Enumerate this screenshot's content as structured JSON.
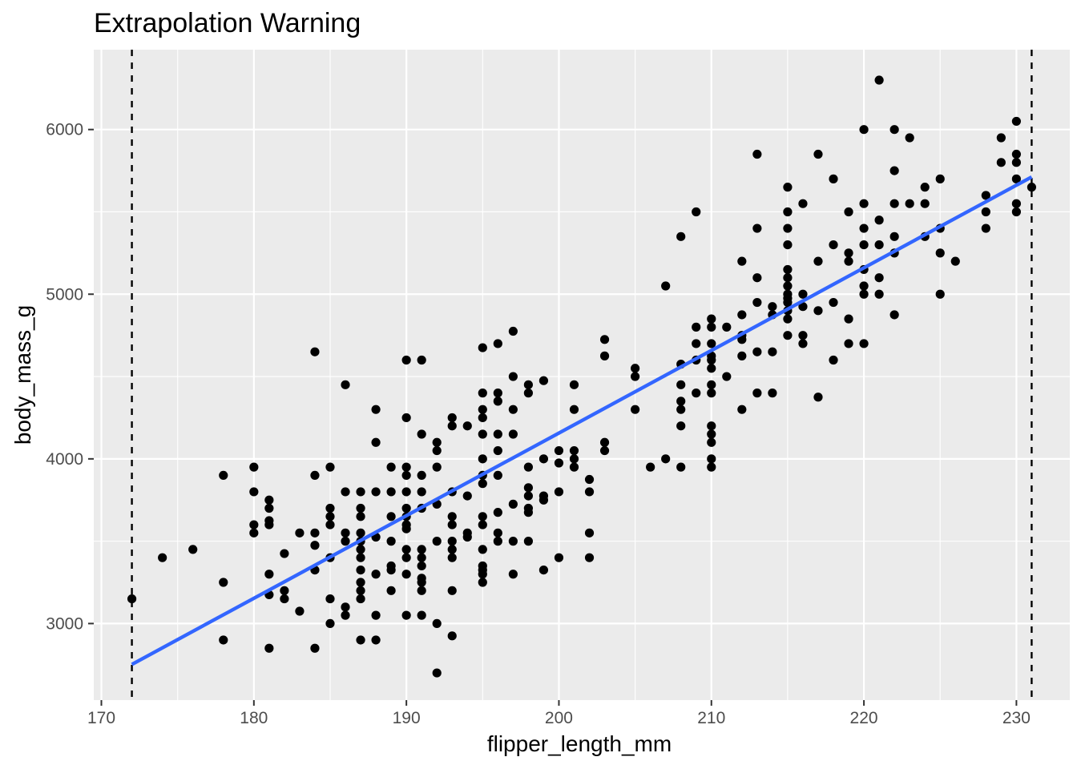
{
  "chart_data": {
    "type": "scatter",
    "title": "Extrapolation Warning",
    "xlabel": "flipper_length_mm",
    "ylabel": "body_mass_g",
    "xlim": [
      169.5,
      233.5
    ],
    "ylim": [
      2535,
      6485
    ],
    "x_ticks": [
      170,
      180,
      190,
      200,
      210,
      220,
      230
    ],
    "y_ticks": [
      3000,
      4000,
      5000,
      6000
    ],
    "grid": true,
    "panel_background": "#ebebeb",
    "point_color": "#000000",
    "fit_line": {
      "x": [
        172,
        231
      ],
      "y": [
        2752,
        5712
      ],
      "color": "#3366ff"
    },
    "reference_lines": [
      {
        "x": 172,
        "style": "dashed",
        "color": "#000000"
      },
      {
        "x": 231,
        "style": "dashed",
        "color": "#000000"
      }
    ],
    "points": [
      [
        172,
        3150
      ],
      [
        174,
        3400
      ],
      [
        176,
        3450
      ],
      [
        178,
        3900
      ],
      [
        178,
        3250
      ],
      [
        178,
        2900
      ],
      [
        180,
        3950
      ],
      [
        180,
        3800
      ],
      [
        180,
        3600
      ],
      [
        180,
        3550
      ],
      [
        181,
        3750
      ],
      [
        181,
        3700
      ],
      [
        181,
        3625
      ],
      [
        181,
        3600
      ],
      [
        181,
        3300
      ],
      [
        181,
        3175
      ],
      [
        181,
        2850
      ],
      [
        182,
        3425
      ],
      [
        182,
        3200
      ],
      [
        182,
        3150
      ],
      [
        183,
        3550
      ],
      [
        183,
        3075
      ],
      [
        184,
        4650
      ],
      [
        184,
        3900
      ],
      [
        184,
        3550
      ],
      [
        184,
        3475
      ],
      [
        184,
        3325
      ],
      [
        184,
        2850
      ],
      [
        185,
        3950
      ],
      [
        185,
        3700
      ],
      [
        185,
        3650
      ],
      [
        185,
        3600
      ],
      [
        185,
        3400
      ],
      [
        185,
        3150
      ],
      [
        185,
        3000
      ],
      [
        186,
        4450
      ],
      [
        186,
        3800
      ],
      [
        186,
        3550
      ],
      [
        186,
        3500
      ],
      [
        186,
        3100
      ],
      [
        186,
        3050
      ],
      [
        187,
        3800
      ],
      [
        187,
        3700
      ],
      [
        187,
        3650
      ],
      [
        187,
        3550
      ],
      [
        187,
        3500
      ],
      [
        187,
        3450
      ],
      [
        187,
        3400
      ],
      [
        187,
        3325
      ],
      [
        187,
        3250
      ],
      [
        187,
        3200
      ],
      [
        187,
        3150
      ],
      [
        187,
        2900
      ],
      [
        188,
        4300
      ],
      [
        188,
        4100
      ],
      [
        188,
        3800
      ],
      [
        188,
        3525
      ],
      [
        188,
        3300
      ],
      [
        188,
        3050
      ],
      [
        188,
        2900
      ],
      [
        189,
        3950
      ],
      [
        189,
        3800
      ],
      [
        189,
        3650
      ],
      [
        189,
        3500
      ],
      [
        189,
        3350
      ],
      [
        189,
        3325
      ],
      [
        189,
        3200
      ],
      [
        190,
        4600
      ],
      [
        190,
        4250
      ],
      [
        190,
        3950
      ],
      [
        190,
        3900
      ],
      [
        190,
        3800
      ],
      [
        190,
        3700
      ],
      [
        190,
        3650
      ],
      [
        190,
        3600
      ],
      [
        190,
        3575
      ],
      [
        190,
        3450
      ],
      [
        190,
        3400
      ],
      [
        190,
        3300
      ],
      [
        190,
        3050
      ],
      [
        191,
        4600
      ],
      [
        191,
        4150
      ],
      [
        191,
        3900
      ],
      [
        191,
        3800
      ],
      [
        191,
        3700
      ],
      [
        191,
        3450
      ],
      [
        191,
        3400
      ],
      [
        191,
        3350
      ],
      [
        191,
        3275
      ],
      [
        191,
        3250
      ],
      [
        191,
        3200
      ],
      [
        191,
        3050
      ],
      [
        192,
        4100
      ],
      [
        192,
        4050
      ],
      [
        192,
        3950
      ],
      [
        192,
        3725
      ],
      [
        192,
        3500
      ],
      [
        192,
        3000
      ],
      [
        192,
        2700
      ],
      [
        193,
        4250
      ],
      [
        193,
        4200
      ],
      [
        193,
        3800
      ],
      [
        193,
        3650
      ],
      [
        193,
        3600
      ],
      [
        193,
        3500
      ],
      [
        193,
        3450
      ],
      [
        193,
        3400
      ],
      [
        193,
        3200
      ],
      [
        193,
        2925
      ],
      [
        194,
        4200
      ],
      [
        194,
        3775
      ],
      [
        194,
        3550
      ],
      [
        194,
        3525
      ],
      [
        195,
        4675
      ],
      [
        195,
        4400
      ],
      [
        195,
        4300
      ],
      [
        195,
        4250
      ],
      [
        195,
        4150
      ],
      [
        195,
        4000
      ],
      [
        195,
        3900
      ],
      [
        195,
        3850
      ],
      [
        195,
        3650
      ],
      [
        195,
        3600
      ],
      [
        195,
        3450
      ],
      [
        195,
        3350
      ],
      [
        195,
        3325
      ],
      [
        195,
        3300
      ],
      [
        195,
        3250
      ],
      [
        196,
        4700
      ],
      [
        196,
        4400
      ],
      [
        196,
        4350
      ],
      [
        196,
        4150
      ],
      [
        196,
        4050
      ],
      [
        196,
        3900
      ],
      [
        196,
        3675
      ],
      [
        196,
        3550
      ],
      [
        196,
        3500
      ],
      [
        197,
        4775
      ],
      [
        197,
        4500
      ],
      [
        197,
        4300
      ],
      [
        197,
        4150
      ],
      [
        197,
        3725
      ],
      [
        197,
        3500
      ],
      [
        197,
        3300
      ],
      [
        198,
        4450
      ],
      [
        198,
        4400
      ],
      [
        198,
        3950
      ],
      [
        198,
        3825
      ],
      [
        198,
        3775
      ],
      [
        198,
        3700
      ],
      [
        198,
        3675
      ],
      [
        198,
        3500
      ],
      [
        199,
        4475
      ],
      [
        199,
        4000
      ],
      [
        199,
        3775
      ],
      [
        199,
        3750
      ],
      [
        199,
        3325
      ],
      [
        200,
        4050
      ],
      [
        200,
        3975
      ],
      [
        200,
        3800
      ],
      [
        200,
        3400
      ],
      [
        201,
        4450
      ],
      [
        201,
        4300
      ],
      [
        201,
        4050
      ],
      [
        201,
        4000
      ],
      [
        201,
        3950
      ],
      [
        202,
        3875
      ],
      [
        202,
        3800
      ],
      [
        202,
        3550
      ],
      [
        202,
        3400
      ],
      [
        203,
        4725
      ],
      [
        203,
        4625
      ],
      [
        203,
        4100
      ],
      [
        203,
        4050
      ],
      [
        205,
        4550
      ],
      [
        205,
        4500
      ],
      [
        205,
        4300
      ],
      [
        206,
        3950
      ],
      [
        207,
        5050
      ],
      [
        207,
        4000
      ],
      [
        208,
        5350
      ],
      [
        208,
        4575
      ],
      [
        208,
        4450
      ],
      [
        208,
        4350
      ],
      [
        208,
        4300
      ],
      [
        208,
        4200
      ],
      [
        208,
        3950
      ],
      [
        209,
        5500
      ],
      [
        209,
        4800
      ],
      [
        209,
        4700
      ],
      [
        209,
        4600
      ],
      [
        209,
        4400
      ],
      [
        210,
        4850
      ],
      [
        210,
        4800
      ],
      [
        210,
        4700
      ],
      [
        210,
        4625
      ],
      [
        210,
        4600
      ],
      [
        210,
        4550
      ],
      [
        210,
        4450
      ],
      [
        210,
        4400
      ],
      [
        210,
        4200
      ],
      [
        210,
        4150
      ],
      [
        210,
        4100
      ],
      [
        210,
        4000
      ],
      [
        210,
        3950
      ],
      [
        211,
        4800
      ],
      [
        211,
        4500
      ],
      [
        212,
        4875
      ],
      [
        212,
        4750
      ],
      [
        212,
        4725
      ],
      [
        212,
        4625
      ],
      [
        212,
        4300
      ],
      [
        212,
        5200
      ],
      [
        213,
        5850
      ],
      [
        213,
        5400
      ],
      [
        213,
        5100
      ],
      [
        213,
        4950
      ],
      [
        213,
        4650
      ],
      [
        213,
        4400
      ],
      [
        214,
        4925
      ],
      [
        214,
        4875
      ],
      [
        214,
        4650
      ],
      [
        214,
        4400
      ],
      [
        215,
        5650
      ],
      [
        215,
        5500
      ],
      [
        215,
        5400
      ],
      [
        215,
        5300
      ],
      [
        215,
        5150
      ],
      [
        215,
        5100
      ],
      [
        215,
        5050
      ],
      [
        215,
        5000
      ],
      [
        215,
        4975
      ],
      [
        215,
        4950
      ],
      [
        215,
        4900
      ],
      [
        215,
        4850
      ],
      [
        215,
        4750
      ],
      [
        216,
        5550
      ],
      [
        216,
        5000
      ],
      [
        216,
        4925
      ],
      [
        216,
        4750
      ],
      [
        216,
        4700
      ],
      [
        217,
        5850
      ],
      [
        217,
        5200
      ],
      [
        217,
        4900
      ],
      [
        217,
        4375
      ],
      [
        218,
        5700
      ],
      [
        218,
        5300
      ],
      [
        218,
        4950
      ],
      [
        218,
        4600
      ],
      [
        219,
        5500
      ],
      [
        219,
        5250
      ],
      [
        219,
        5200
      ],
      [
        219,
        4850
      ],
      [
        219,
        4700
      ],
      [
        220,
        6000
      ],
      [
        220,
        5550
      ],
      [
        220,
        5400
      ],
      [
        220,
        5300
      ],
      [
        220,
        5150
      ],
      [
        220,
        5050
      ],
      [
        220,
        5000
      ],
      [
        220,
        4700
      ],
      [
        221,
        6300
      ],
      [
        221,
        5450
      ],
      [
        221,
        5300
      ],
      [
        221,
        5100
      ],
      [
        221,
        5000
      ],
      [
        222,
        6000
      ],
      [
        222,
        5750
      ],
      [
        222,
        5550
      ],
      [
        222,
        5350
      ],
      [
        222,
        5250
      ],
      [
        222,
        4875
      ],
      [
        223,
        5950
      ],
      [
        223,
        5550
      ],
      [
        224,
        5650
      ],
      [
        224,
        5550
      ],
      [
        224,
        5350
      ],
      [
        225,
        5700
      ],
      [
        225,
        5400
      ],
      [
        225,
        5250
      ],
      [
        225,
        5000
      ],
      [
        226,
        5200
      ],
      [
        228,
        5600
      ],
      [
        228,
        5500
      ],
      [
        228,
        5400
      ],
      [
        229,
        5950
      ],
      [
        229,
        5800
      ],
      [
        230,
        6050
      ],
      [
        230,
        5850
      ],
      [
        230,
        5800
      ],
      [
        230,
        5700
      ],
      [
        230,
        5550
      ],
      [
        230,
        5500
      ],
      [
        231,
        5650
      ]
    ]
  }
}
